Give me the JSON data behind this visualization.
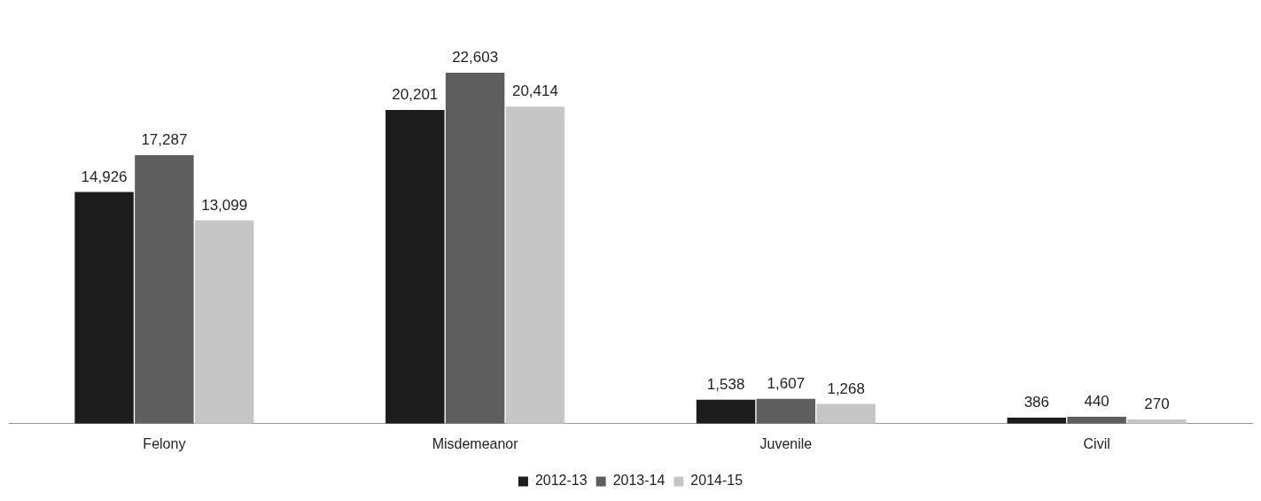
{
  "chart_data": {
    "type": "bar",
    "categories": [
      "Felony",
      "Misdemeanor",
      "Juvenile",
      "Civil"
    ],
    "series": [
      {
        "name": "2012-13",
        "color": "#1c1c1c",
        "values": [
          14926,
          20201,
          1538,
          386
        ],
        "value_labels": [
          "14,926",
          "20,201",
          "1,538",
          "386"
        ]
      },
      {
        "name": "2013-14",
        "color": "#5e5e5e",
        "values": [
          17287,
          22603,
          1607,
          440
        ],
        "value_labels": [
          "17,287",
          "22,603",
          "1,607",
          "440"
        ]
      },
      {
        "name": "2014-15",
        "color": "#c6c6c6",
        "values": [
          13099,
          20414,
          1268,
          270
        ],
        "value_labels": [
          "13,099",
          "20,414",
          "1,268",
          "270"
        ]
      }
    ],
    "legend": "bottom",
    "grid": false
  }
}
